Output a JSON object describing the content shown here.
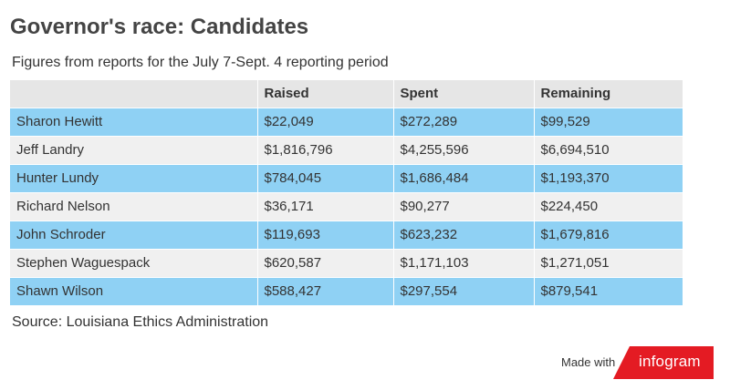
{
  "header": {
    "title": "Governor's race: Candidates",
    "subtitle": "Figures from reports for the July 7-Sept. 4 reporting period"
  },
  "chart_data": {
    "type": "table",
    "title": "Governor's race: Candidates",
    "subtitle": "Figures from reports for the July 7-Sept. 4 reporting period",
    "columns": [
      "",
      "Raised",
      "Spent",
      "Remaining"
    ],
    "rows": [
      [
        "Sharon Hewitt",
        "$22,049",
        "$272,289",
        "$99,529"
      ],
      [
        "Jeff Landry",
        "$1,816,796",
        "$4,255,596",
        "$6,694,510"
      ],
      [
        "Hunter Lundy",
        "$784,045",
        "$1,686,484",
        "$1,193,370"
      ],
      [
        "Richard Nelson",
        "$36,171",
        "$90,277",
        "$224,450"
      ],
      [
        "John Schroder",
        "$119,693",
        "$623,232",
        "$1,679,816"
      ],
      [
        "Stephen Waguespack",
        "$620,587",
        "$1,171,103",
        "$1,271,051"
      ],
      [
        "Shawn Wilson",
        "$588,427",
        "$297,554",
        "$879,541"
      ]
    ],
    "row_colors": [
      "#8fd1f4",
      "#f0f0f0"
    ],
    "header_color": "#e6e6e6"
  },
  "footer": {
    "source": "Source: Louisiana Ethics Administration",
    "made_with": "Made with",
    "brand": "infogram",
    "brand_color": "#e41b23"
  }
}
